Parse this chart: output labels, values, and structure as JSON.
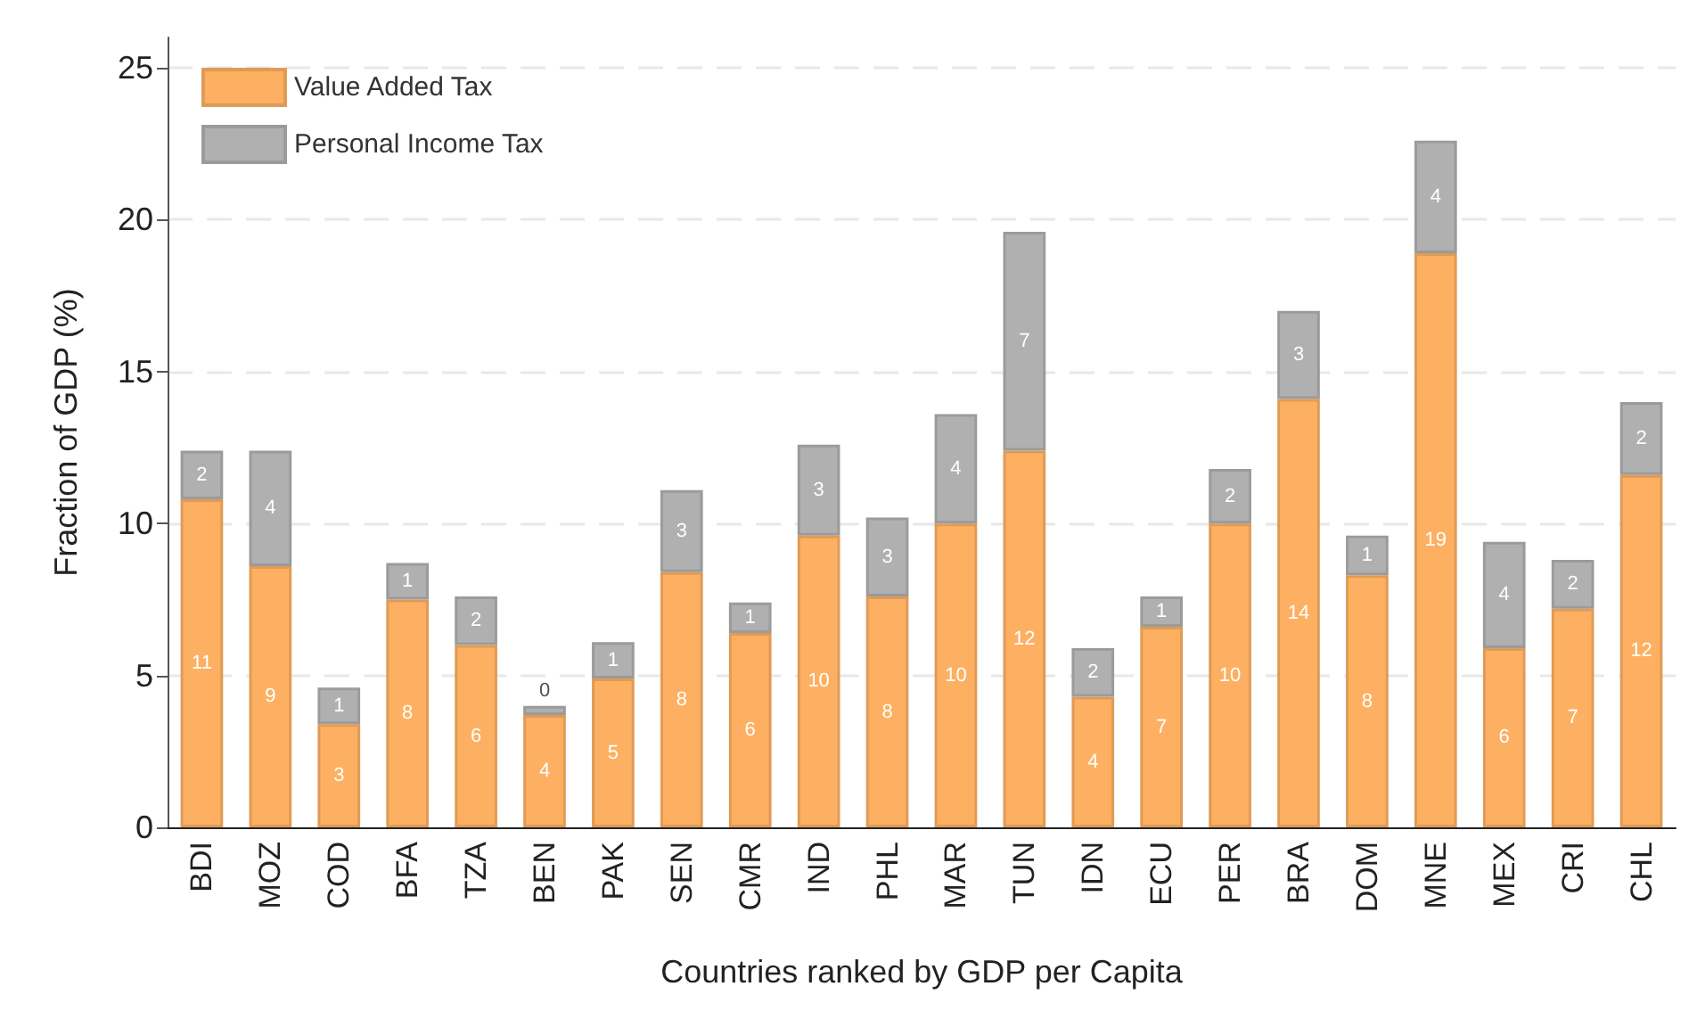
{
  "chart_data": {
    "type": "bar",
    "stacked": true,
    "xlabel": "Countries ranked by GDP per Capita",
    "ylabel": "Fraction of GDP (%)",
    "categories": [
      "BDI",
      "MOZ",
      "COD",
      "BFA",
      "TZA",
      "BEN",
      "PAK",
      "SEN",
      "CMR",
      "IND",
      "PHL",
      "MAR",
      "TUN",
      "IDN",
      "ECU",
      "PER",
      "BRA",
      "DOM",
      "MNE",
      "MEX",
      "CRI",
      "CHL"
    ],
    "series": [
      {
        "name": "Value Added Tax",
        "color": "#fdb062",
        "values": [
          10.8,
          8.6,
          3.4,
          7.5,
          6.0,
          3.7,
          4.9,
          8.4,
          6.4,
          9.6,
          7.6,
          10.0,
          12.4,
          4.3,
          6.6,
          10.0,
          14.1,
          8.3,
          18.9,
          5.9,
          7.2,
          11.6
        ],
        "value_labels": [
          "11",
          "9",
          "3",
          "8",
          "6",
          "4",
          "5",
          "8",
          "6",
          "10",
          "8",
          "10",
          "12",
          "4",
          "7",
          "10",
          "14",
          "8",
          "19",
          "6",
          "7",
          "12"
        ]
      },
      {
        "name": "Personal Income Tax",
        "color": "#b0b0b0",
        "values": [
          1.6,
          3.8,
          1.2,
          1.2,
          1.6,
          0.3,
          1.2,
          2.7,
          1.0,
          3.0,
          2.6,
          3.6,
          7.2,
          1.6,
          1.0,
          1.8,
          2.9,
          1.3,
          3.7,
          3.5,
          1.6,
          2.4
        ],
        "value_labels": [
          "2",
          "4",
          "1",
          "1",
          "2",
          "0",
          "1",
          "3",
          "1",
          "3",
          "3",
          "4",
          "7",
          "2",
          "1",
          "2",
          "3",
          "1",
          "4",
          "4",
          "2",
          "2"
        ]
      }
    ],
    "ylim": [
      0,
      26
    ],
    "yticks": [
      0,
      5,
      10,
      15,
      20,
      25
    ],
    "grid": "y",
    "legend": "top left"
  }
}
